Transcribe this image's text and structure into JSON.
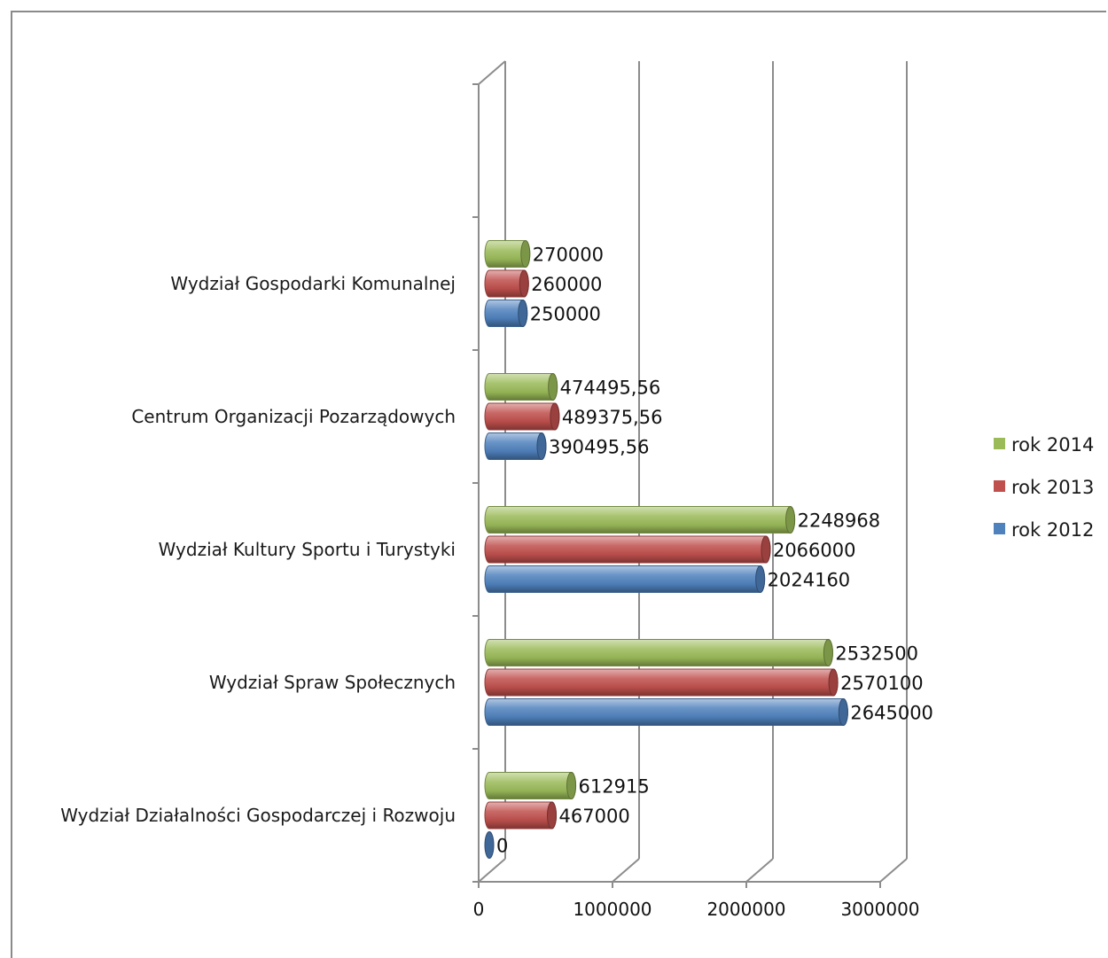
{
  "chart_data": {
    "type": "bar",
    "orientation": "horizontal",
    "style": "3d-cylinder",
    "categories": [
      "Wydział Działalności Gospodarczej i Rozwoju",
      "Wydział Spraw Społecznych",
      "Wydział Kultury Sportu i Turystyki",
      "Centrum Organizacji Pozarządowych",
      "Wydział Gospodarki Komunalnej"
    ],
    "series": [
      {
        "name": "rok 2012",
        "color": "#4f81bd",
        "values": [
          0,
          2645000,
          2024160,
          390495.56,
          250000
        ],
        "labels": [
          "0",
          "2645000",
          "2024160",
          "390495,56",
          "250000"
        ]
      },
      {
        "name": "rok 2013",
        "color": "#c0504d",
        "values": [
          467000,
          2570100,
          2066000,
          489375.56,
          260000
        ],
        "labels": [
          "467000",
          "2570100",
          "2066000",
          "489375,56",
          "260000"
        ]
      },
      {
        "name": "rok 2014",
        "color": "#9bbb59",
        "values": [
          612915,
          2532500,
          2248968,
          474495.56,
          270000
        ],
        "labels": [
          "612915",
          "2532500",
          "2248968",
          "474495,56",
          "270000"
        ]
      }
    ],
    "xlim": [
      0,
      3000000
    ],
    "x_ticks": [
      "0",
      "1000000",
      "2000000",
      "3000000"
    ],
    "grid": true,
    "legend_position": "right"
  }
}
